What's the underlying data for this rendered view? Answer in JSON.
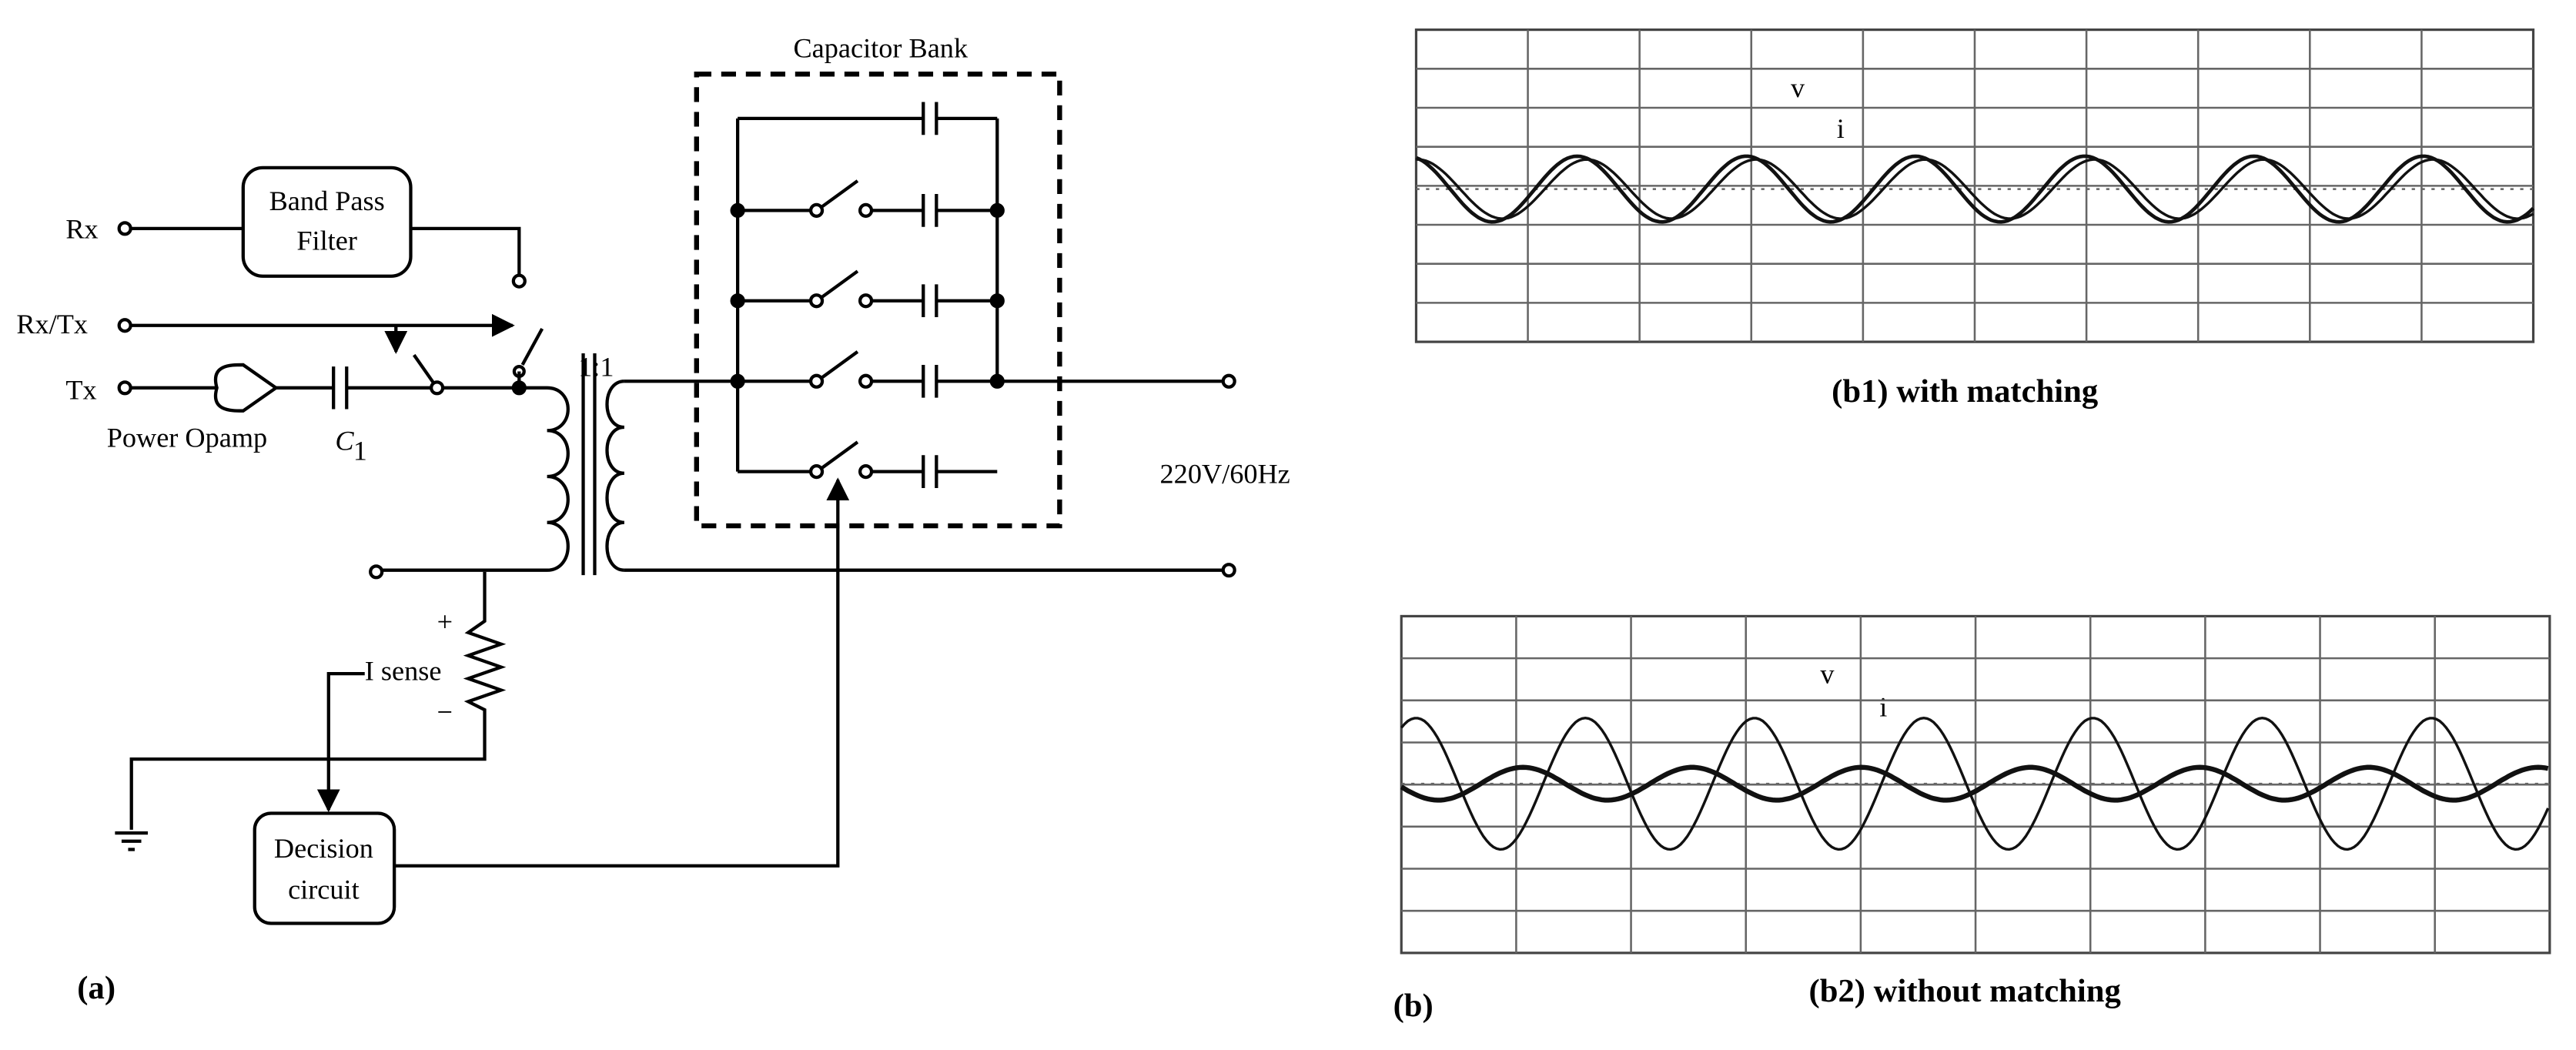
{
  "panel_a": {
    "label": "(a)",
    "capacitor_bank": "Capacitor Bank",
    "ports": {
      "rx": "Rx",
      "rx_tx": "Rx/Tx",
      "tx": "Tx"
    },
    "band_pass_filter": [
      "Band Pass",
      "Filter"
    ],
    "power_opamp": "Power Opamp",
    "capacitor": {
      "symbol": "C",
      "subscript": "1"
    },
    "transformer_ratio": "1:1",
    "mains": "220V/60Hz",
    "current_sense": {
      "label": "I sense",
      "plus": "+",
      "minus": "−"
    },
    "decision_circuit": [
      "Decision",
      "circuit"
    ]
  },
  "panel_b": {
    "label": "(b)",
    "b1": {
      "caption": "(b1) with matching",
      "v_label": "v",
      "i_label": "i"
    },
    "b2": {
      "caption": "(b2) without matching",
      "v_label": "v",
      "i_label": "i"
    }
  }
}
